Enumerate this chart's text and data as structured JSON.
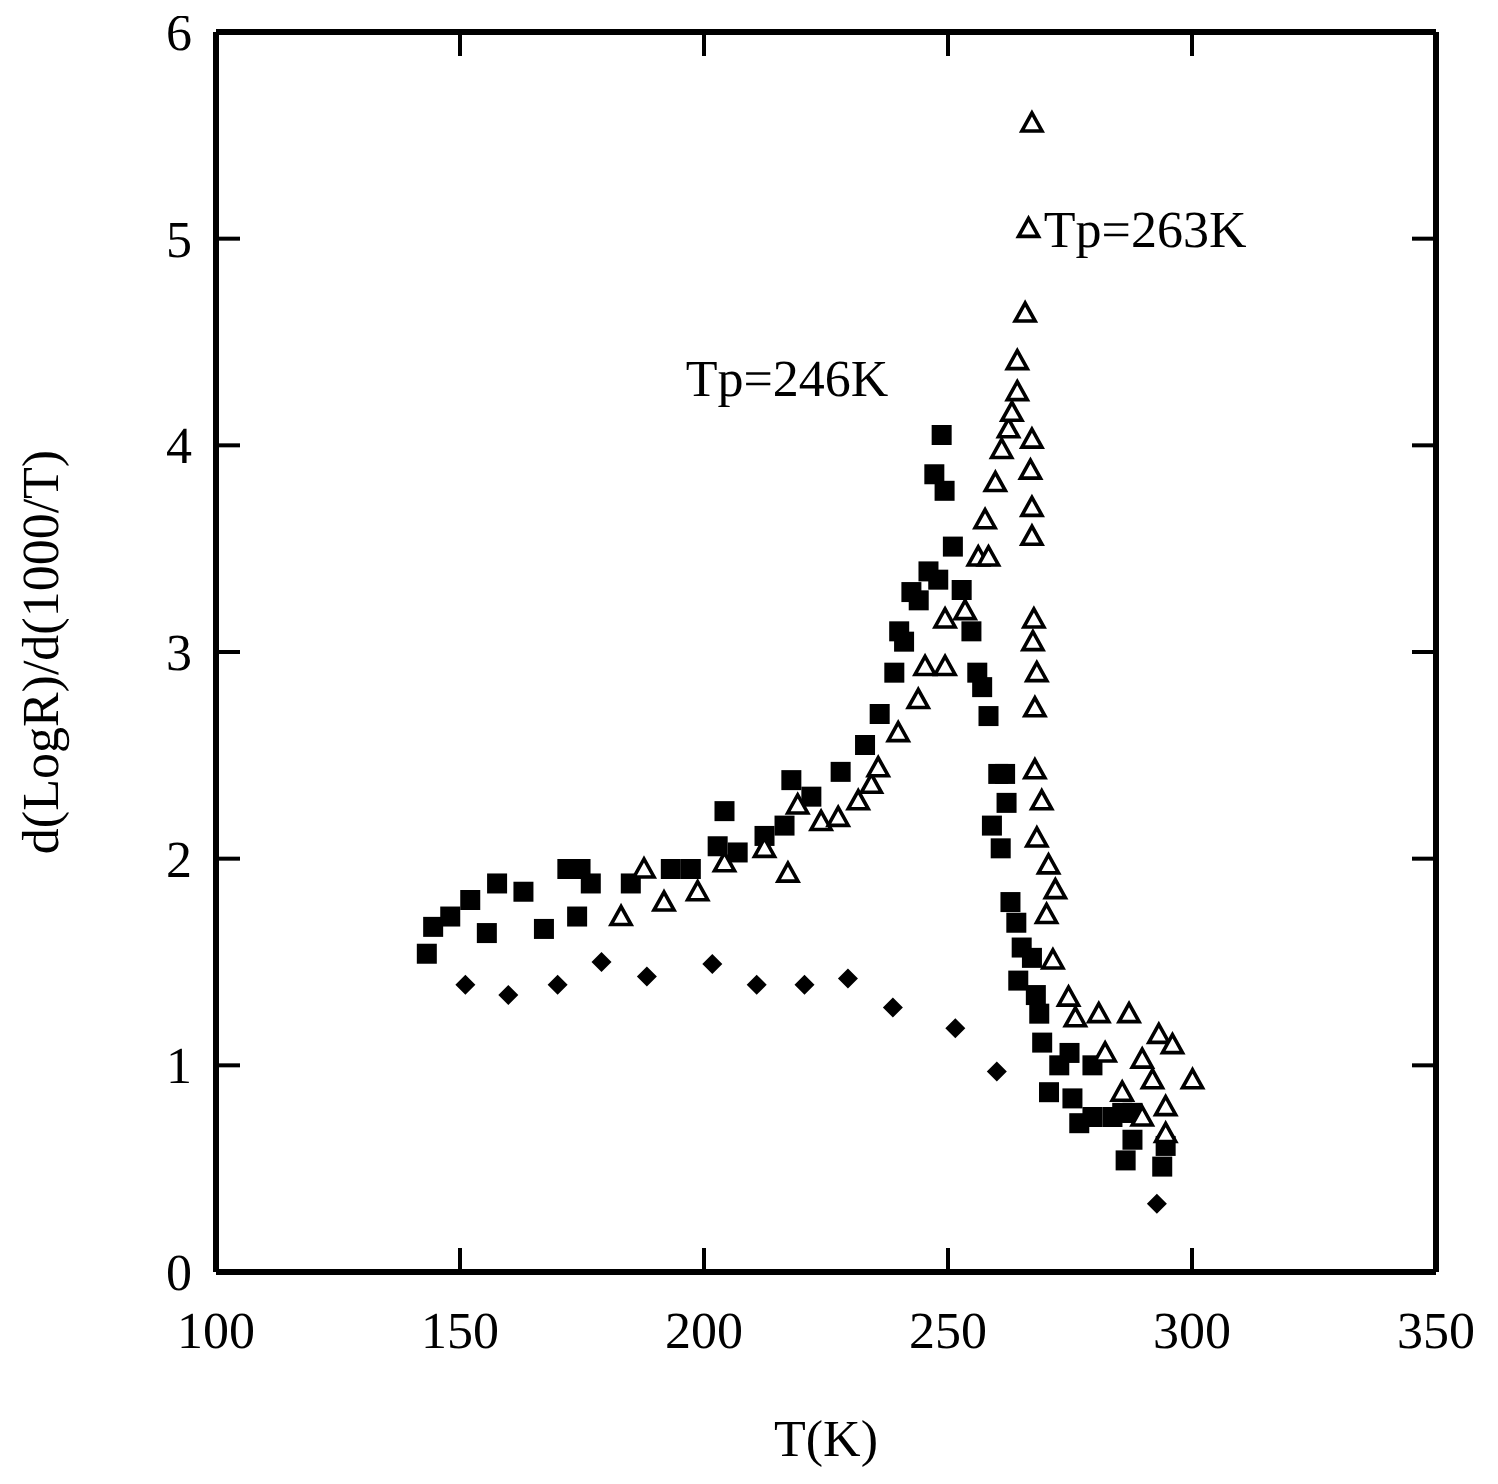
{
  "chart_data": {
    "type": "scatter",
    "xlabel": "T(K)",
    "ylabel": "d(LogR)/d(1000/T)",
    "xlim": [
      100,
      350
    ],
    "xticks": [
      100,
      150,
      200,
      250,
      300,
      350
    ],
    "ylim": [
      0,
      6
    ],
    "yticks": [
      0,
      1,
      2,
      3,
      4,
      5,
      6
    ],
    "annotations": [
      "Tp=246K",
      {
        "text": "Tp=263K",
        "x": 268,
        "y": 5.05
      }
    ],
    "series": [
      {
        "color": "#000000",
        "marker": "square",
        "x": [
          143.2,
          144.5,
          148,
          152.1,
          155.5,
          157.6,
          163,
          167.2,
          172,
          174,
          174.7,
          176.8,
          185,
          193.2,
          197.3,
          202.8,
          204.2,
          206.9,
          212.4,
          216.5,
          217.9,
          222,
          228,
          233,
          236,
          239,
          240,
          241,
          242.5,
          244,
          246,
          247.2,
          248,
          248.7,
          249.3,
          251,
          252.8,
          254.8,
          256,
          257,
          258.3,
          259,
          260.3,
          260.8,
          261.7,
          262,
          262.8,
          264,
          264.4,
          265.1,
          267.2,
          268,
          268.7,
          269.3,
          270.7,
          272.8,
          274.9,
          275.5,
          276.9,
          279.6,
          279.6,
          283.7,
          285.7,
          286.4,
          287.8,
          287.8,
          293.9,
          294.6
        ],
        "values": [
          1.54,
          1.67,
          1.72,
          1.8,
          1.64,
          1.88,
          1.84,
          1.66,
          1.95,
          1.72,
          1.95,
          1.88,
          1.88,
          1.95,
          1.95,
          2.06,
          2.23,
          2.03,
          2.11,
          2.16,
          2.38,
          2.3,
          2.42,
          2.55,
          2.7,
          2.9,
          3.1,
          3.05,
          3.29,
          3.25,
          3.39,
          3.86,
          3.35,
          4.05,
          3.78,
          3.51,
          3.3,
          3.1,
          2.9,
          2.83,
          2.69,
          2.16,
          2.41,
          2.05,
          2.41,
          2.27,
          1.79,
          1.69,
          1.41,
          1.57,
          1.52,
          1.34,
          1.25,
          1.11,
          0.87,
          1.0,
          1.06,
          0.84,
          0.72,
          0.75,
          1.0,
          0.75,
          0.77,
          0.54,
          0.77,
          0.64,
          0.51,
          0.61
        ]
      },
      {
        "color": "#000000",
        "marker": "triangle",
        "x": [
          183,
          187.7,
          191.8,
          198.7,
          204.2,
          212.4,
          217.2,
          219.2,
          224,
          227.5,
          231.6,
          234.3,
          235.7,
          239.8,
          243.9,
          245.3,
          249.4,
          249.4,
          253.5,
          256.2,
          257.6,
          258.3,
          259.7,
          261,
          262.4,
          263.1,
          264.2,
          264.2,
          265.8,
          266.5,
          267.2,
          267.2,
          266.9,
          267.2,
          267.2,
          267.6,
          267.4,
          268.2,
          267.8,
          267.8,
          269.2,
          268.2,
          270.6,
          272,
          270.2,
          271.5,
          274.7,
          276.1,
          280.9,
          282.2,
          285.7,
          287.1,
          289.8,
          289.8,
          291.9,
          293.2,
          294.6,
          294.6,
          296,
          300.1
        ],
        "values": [
          1.72,
          1.95,
          1.79,
          1.84,
          1.98,
          2.05,
          1.93,
          2.26,
          2.18,
          2.2,
          2.28,
          2.36,
          2.44,
          2.61,
          2.77,
          2.93,
          2.93,
          3.16,
          3.2,
          3.46,
          3.64,
          3.46,
          3.82,
          3.98,
          4.08,
          4.16,
          4.26,
          4.41,
          4.64,
          5.05,
          5.56,
          4.03,
          3.88,
          3.7,
          3.56,
          3.16,
          3.05,
          2.9,
          2.73,
          2.43,
          2.28,
          2.1,
          1.97,
          1.85,
          1.73,
          1.51,
          1.33,
          1.23,
          1.25,
          1.06,
          0.87,
          1.25,
          1.03,
          0.75,
          0.93,
          1.15,
          0.8,
          0.67,
          1.1,
          0.93
        ]
      },
      {
        "color": "#000000",
        "marker": "diamond",
        "x": [
          151.1,
          159.9,
          170,
          179,
          188.3,
          201.7,
          210.8,
          220.6,
          229.5,
          238.7,
          251.5,
          260,
          292.8
        ],
        "values": [
          1.39,
          1.34,
          1.39,
          1.5,
          1.43,
          1.49,
          1.39,
          1.39,
          1.42,
          1.28,
          1.18,
          0.97,
          0.33
        ]
      }
    ]
  }
}
